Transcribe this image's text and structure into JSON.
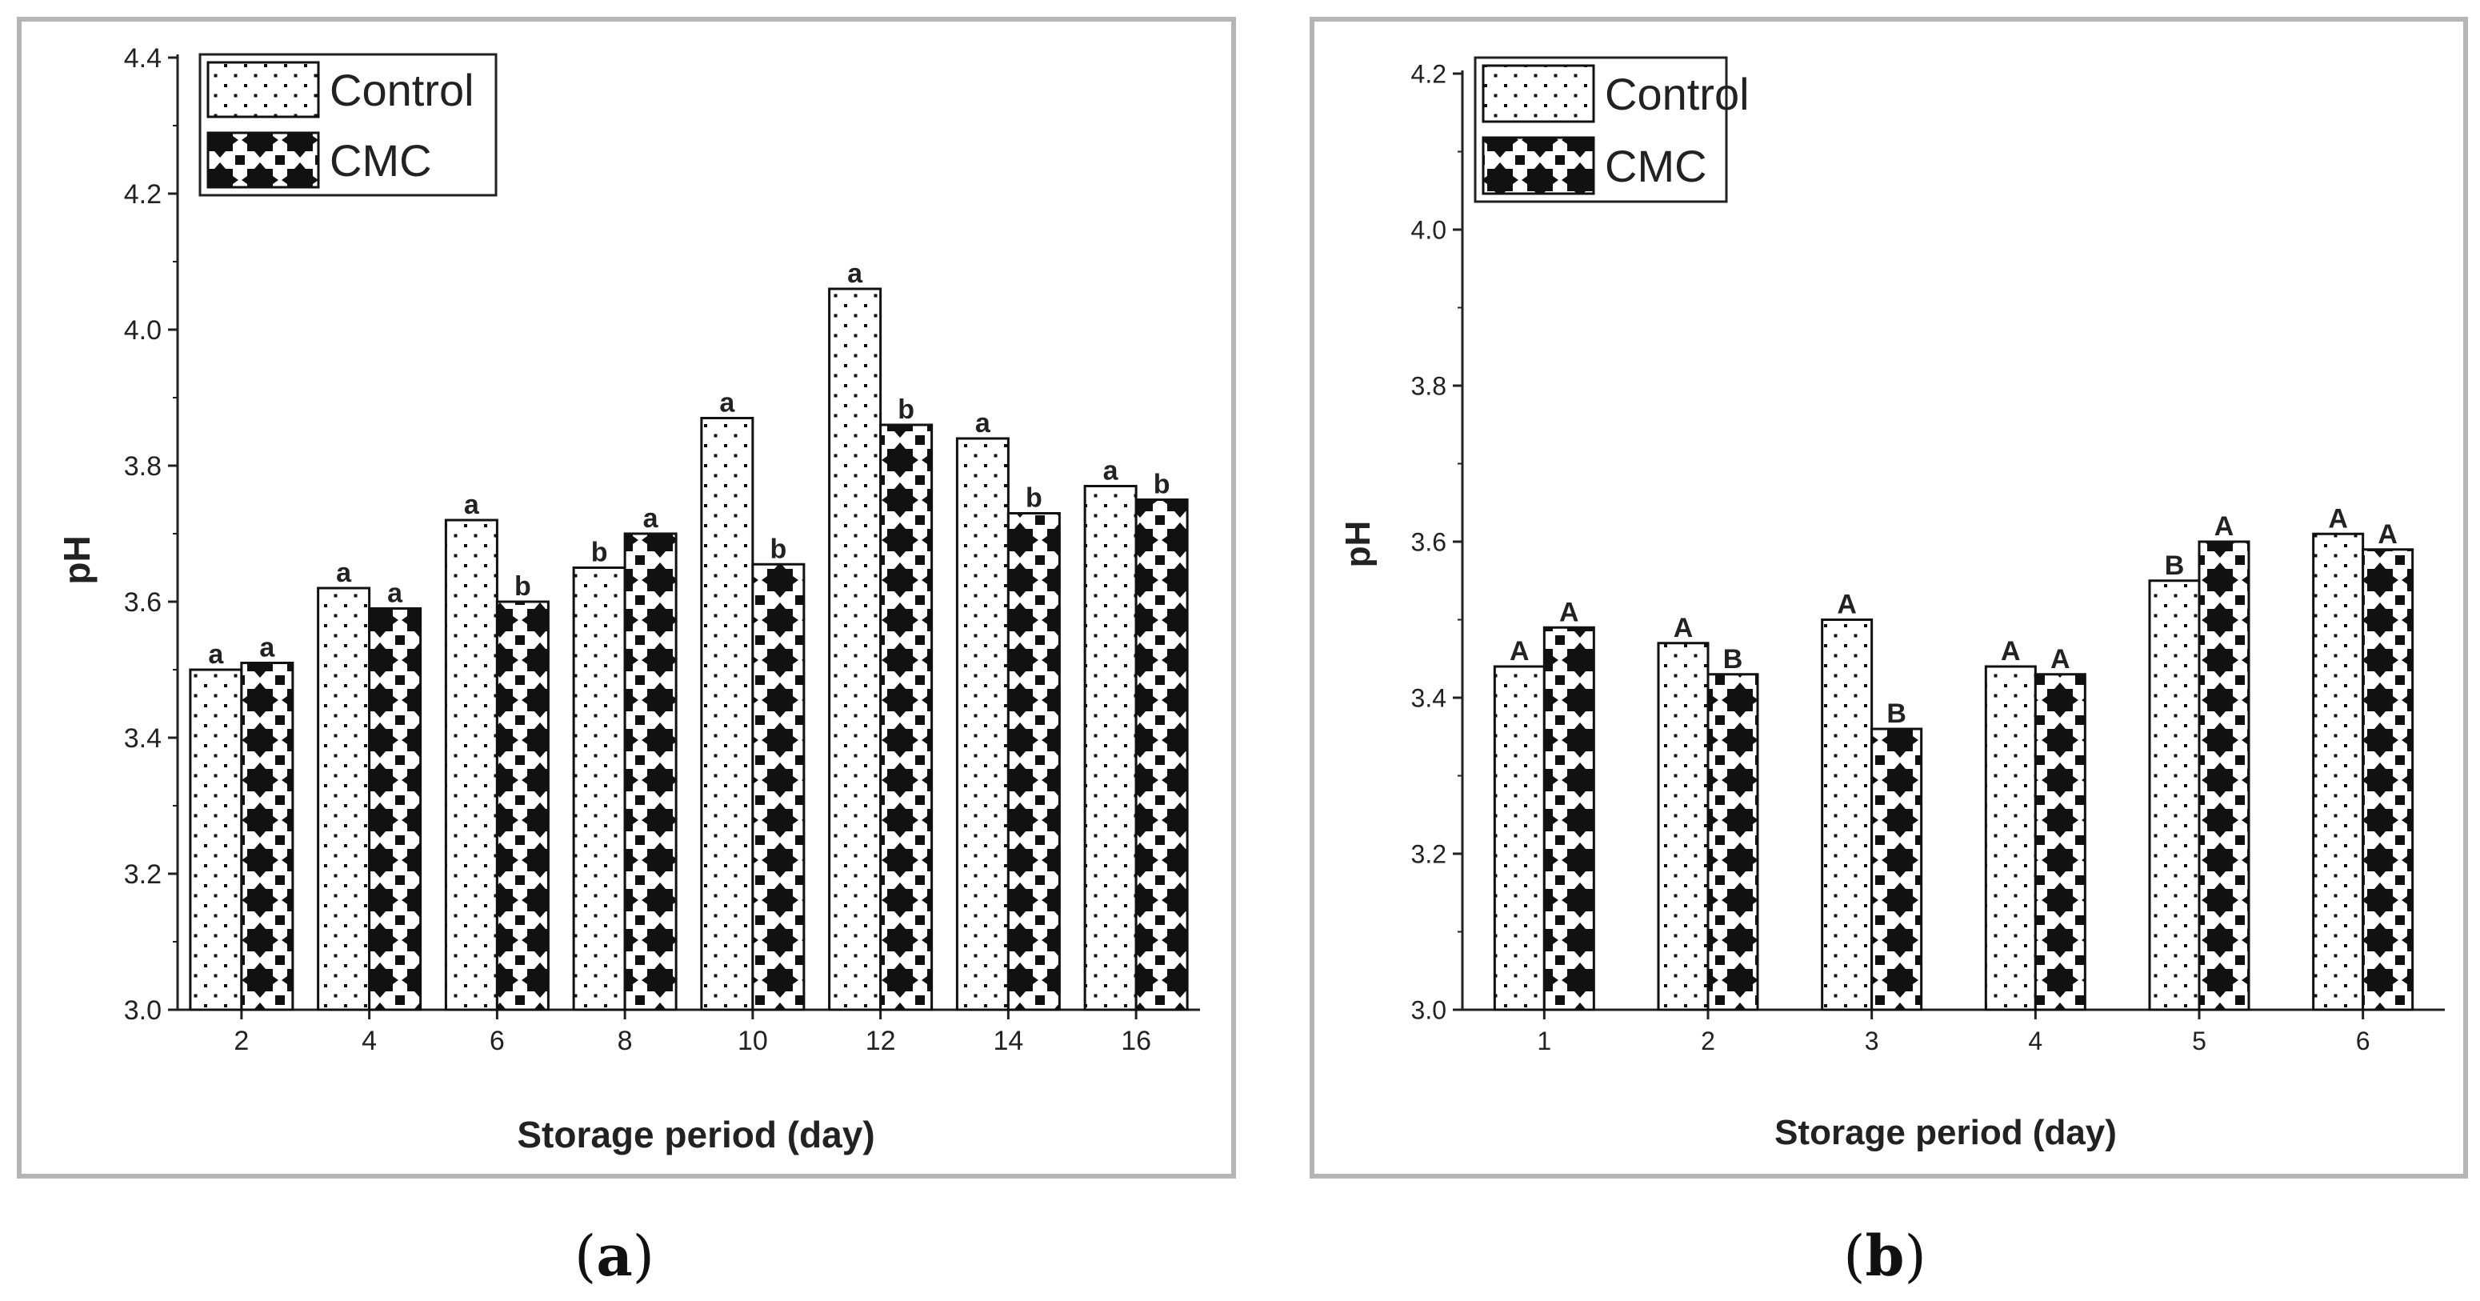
{
  "chart_data": [
    {
      "type": "bar",
      "panel_label": "(a)",
      "caption_parts": [
        "(",
        "a",
        ")"
      ],
      "xlabel": "Storage period (day)",
      "ylabel": "pH",
      "categories": [
        "2",
        "4",
        "6",
        "8",
        "10",
        "12",
        "14",
        "16"
      ],
      "ylim": [
        3.0,
        4.4
      ],
      "yticks": [
        "3.0",
        "3.2",
        "3.4",
        "3.6",
        "3.8",
        "4.0",
        "4.2",
        "4.4"
      ],
      "legend_position": "top-left",
      "grid": false,
      "series": [
        {
          "name": "Control",
          "pattern": "dots",
          "values": [
            3.5,
            3.62,
            3.72,
            3.65,
            3.87,
            4.06,
            3.84,
            3.77
          ],
          "labels": [
            "a",
            "a",
            "a",
            "b",
            "a",
            "a",
            "a",
            "a"
          ]
        },
        {
          "name": "CMC",
          "pattern": "diamonds",
          "values": [
            3.51,
            3.59,
            3.6,
            3.7,
            3.655,
            3.86,
            3.73,
            3.75
          ],
          "labels": [
            "a",
            "a",
            "b",
            "a",
            "b",
            "b",
            "b",
            "b"
          ]
        }
      ]
    },
    {
      "type": "bar",
      "panel_label": "(b)",
      "caption_parts": [
        "(",
        "b",
        ")"
      ],
      "xlabel": "Storage period (day)",
      "ylabel": "pH",
      "categories": [
        "1",
        "2",
        "3",
        "4",
        "5",
        "6"
      ],
      "ylim": [
        3.0,
        4.2
      ],
      "yticks": [
        "3.0",
        "3.2",
        "3.4",
        "3.6",
        "3.8",
        "4.0",
        "4.2"
      ],
      "legend_position": "top-left",
      "grid": false,
      "series": [
        {
          "name": "Control",
          "pattern": "dots",
          "values": [
            3.44,
            3.47,
            3.5,
            3.44,
            3.55,
            3.61
          ],
          "labels": [
            "A",
            "A",
            "A",
            "A",
            "B",
            "A"
          ]
        },
        {
          "name": "CMC",
          "pattern": "diamonds",
          "values": [
            3.49,
            3.43,
            3.36,
            3.43,
            3.6,
            3.59
          ],
          "labels": [
            "A",
            "B",
            "B",
            "A",
            "A",
            "A"
          ]
        }
      ]
    }
  ]
}
